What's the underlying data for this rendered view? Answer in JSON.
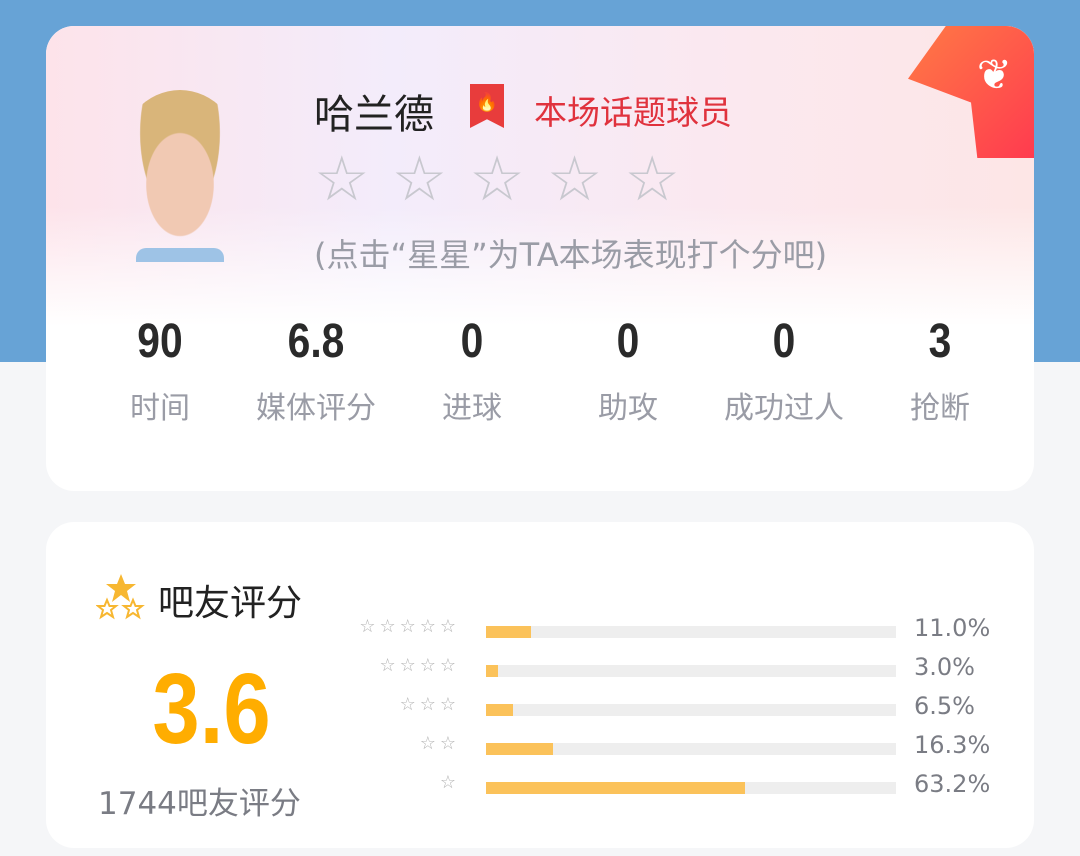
{
  "player": {
    "name": "哈兰德",
    "badge_icon": "fire-bookmark-icon",
    "topic_label": "本场话题球员",
    "rating_stars": 5,
    "hint": "(点击“星星”为TA本场表现打个分吧)"
  },
  "stats": [
    {
      "value": "90",
      "label": "时间"
    },
    {
      "value": "6.8",
      "label": "媒体评分"
    },
    {
      "value": "0",
      "label": "进球"
    },
    {
      "value": "0",
      "label": "助攻"
    },
    {
      "value": "0",
      "label": "成功过人"
    },
    {
      "value": "3",
      "label": "抢断"
    }
  ],
  "fan_rating": {
    "title": "吧友评分",
    "score": "3.6",
    "count_label": "1744吧友评分",
    "accent": "#ffad00",
    "bar_color": "#fbc25a",
    "distribution": [
      {
        "stars": 5,
        "percent": 11.0,
        "label": "11.0%"
      },
      {
        "stars": 4,
        "percent": 3.0,
        "label": "3.0%"
      },
      {
        "stars": 3,
        "percent": 6.5,
        "label": "6.5%"
      },
      {
        "stars": 2,
        "percent": 16.3,
        "label": "16.3%"
      },
      {
        "stars": 1,
        "percent": 63.2,
        "label": "63.2%"
      }
    ]
  }
}
